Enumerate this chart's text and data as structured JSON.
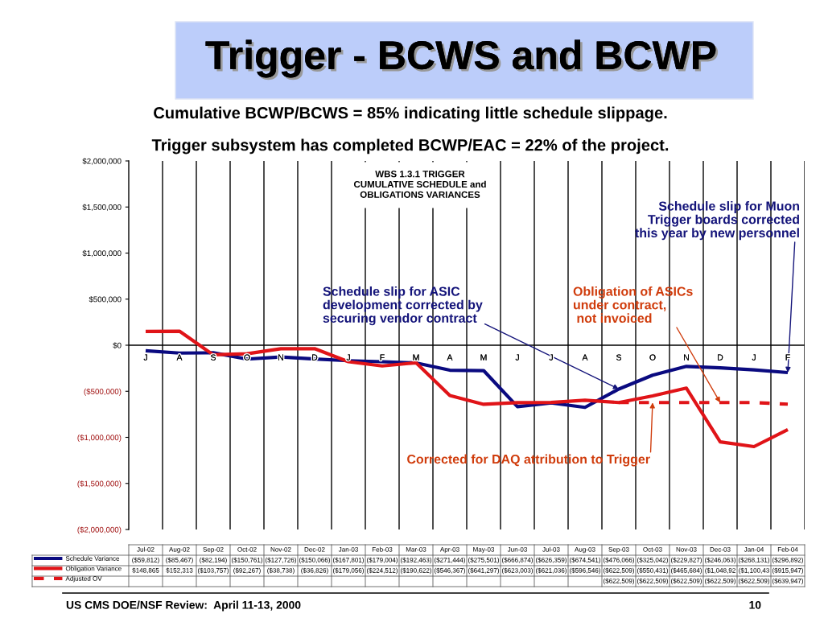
{
  "chart_data": {
    "type": "line",
    "title": "Trigger - BCWS and BCWP",
    "subtitle": "Cumulative BCWP/BCWS = 85% indicating little schedule slippage.\nTrigger subsystem has completed BCWP/EAC = 22% of the project.",
    "categories": [
      "Jul-02",
      "Aug-02",
      "Sep-02",
      "Oct-02",
      "Nov-02",
      "Dec-02",
      "Jan-03",
      "Feb-03",
      "Mar-03",
      "Apr-03",
      "May-03",
      "Jun-03",
      "Jul-03",
      "Aug-03",
      "Sep-03",
      "Oct-03",
      "Nov-03",
      "Dec-03",
      "Jan-04",
      "Feb-04"
    ],
    "series": [
      {
        "name": "Schedule Variance",
        "color": "#0a0a80",
        "values": [
          -59812,
          -85467,
          -82194,
          -150761,
          -127726,
          -150066,
          -167801,
          -179004,
          -192463,
          -271444,
          -275501,
          -666874,
          -626359,
          -674541,
          -476066,
          -325042,
          -229827,
          -246063,
          -268131,
          -296892
        ],
        "value_labels": [
          "($59,812)",
          "($85,467)",
          "($82,194)",
          "($150,761)",
          "($127,726)",
          "($150,066)",
          "($167,801)",
          "($179,004)",
          "($192,463)",
          "($271,444)",
          "($275,501)",
          "($666,874)",
          "($626,359)",
          "($674,541)",
          "($476,066)",
          "($325,042)",
          "($229,827)",
          "($246,063)",
          "($268,131)",
          "($296,892)"
        ]
      },
      {
        "name": "Obligation Variance",
        "color": "#e01418",
        "values": [
          148865,
          152313,
          -103757,
          -92267,
          -38738,
          -36826,
          -179056,
          -224512,
          -190622,
          -546367,
          -641297,
          -623003,
          -621036,
          -596546,
          -622509,
          -550431,
          -465684,
          -1048920,
          -1100430,
          -915947
        ],
        "value_labels": [
          "$148,865",
          "$152,313",
          "($103,757)",
          "($92,267)",
          "($38,738)",
          "($36,826)",
          "($179,056)",
          "($224,512)",
          "($190,622)",
          "($546,367)",
          "($641,297)",
          "($623,003)",
          "($621,036)",
          "($596,546)",
          "($622,509)",
          "($550,431)",
          "($465,684)",
          "($1,048,92",
          "($1,100,43",
          "($915,947)"
        ]
      },
      {
        "name": "Adjusted OV",
        "color": "#e01418",
        "line_style": "dashed",
        "values": [
          null,
          null,
          null,
          null,
          null,
          null,
          null,
          null,
          null,
          null,
          null,
          null,
          null,
          null,
          -622509,
          -622509,
          -622509,
          -622509,
          -622509,
          -639947
        ],
        "value_labels": [
          null,
          null,
          null,
          null,
          null,
          null,
          null,
          null,
          null,
          null,
          null,
          null,
          null,
          null,
          "($622,509)",
          "($622,509)",
          "($622,509)",
          "($622,509)",
          "($622,509)",
          "($639,947)"
        ]
      }
    ],
    "ylim": [
      -2000000,
      2000000
    ],
    "yticks": [
      {
        "value": 2000000,
        "label": "$2,000,000"
      },
      {
        "value": 1500000,
        "label": "$1,500,000"
      },
      {
        "value": 1000000,
        "label": "$1,000,000"
      },
      {
        "value": 500000,
        "label": "$500,000"
      },
      {
        "value": 0,
        "label": "$0"
      },
      {
        "value": -500000,
        "label": "($500,000)"
      },
      {
        "value": -1000000,
        "label": "($1,000,000)"
      },
      {
        "value": -1500000,
        "label": "($1,500,000)"
      },
      {
        "value": -2000000,
        "label": "($2,000,000)"
      }
    ],
    "grid": "x",
    "legend": "bottom",
    "line_style": "solid",
    "ref_lines": [
      {
        "axis": "y",
        "value": 0,
        "color": "#000000"
      }
    ],
    "annotations": [
      "WBS 1.3.1 TRIGGER\nCUMULATIVE SCHEDULE and\nOBLIGATIONS VARIANCES",
      {
        "text": "Schedule slip for Muon\nTrigger boards corrected\nthis year by new personnel",
        "x": "Feb-04",
        "y": -296892
      },
      {
        "text": "Schedule slip for ASIC\ndevelopment corrected by\nsecuring vendor contract",
        "x": "Sep-03",
        "y": -476066
      },
      {
        "text": "Obligation of ASICs\nunder contract,\n not invoiced",
        "x": "Dec-03",
        "y": -622509
      },
      {
        "text": "Corrected for DAQ attribution to Trigger",
        "x": "Oct-03",
        "y": -622509
      },
      "J",
      "A",
      "S",
      "O",
      "N",
      "D",
      "J",
      "F",
      "M",
      "A",
      "M",
      "J",
      "J",
      "A",
      "S",
      "O",
      "N",
      "D",
      "J",
      "F",
      "US CMS DOE/NSF Review:  April 11-13, 2000",
      "10"
    ]
  }
}
